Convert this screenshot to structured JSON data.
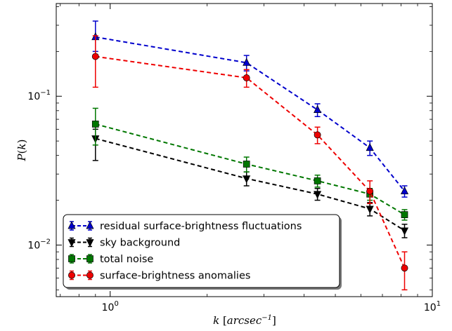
{
  "chart_data": {
    "type": "line",
    "xscale": "log",
    "yscale": "log",
    "xlim": [
      0.68,
      10
    ],
    "ylim": [
      0.0045,
      0.42
    ],
    "xlabel": "k [arcsec⁻¹]",
    "ylabel": "P(k)",
    "x_ticks": [
      {
        "value": 1,
        "base": "10",
        "exp": "0"
      },
      {
        "value": 10,
        "base": "10",
        "exp": "1"
      }
    ],
    "y_ticks": [
      {
        "value": 0.1,
        "base": "10",
        "exp": "−1"
      },
      {
        "value": 0.01,
        "base": "10",
        "exp": "−2"
      }
    ],
    "legend_position": "lower-left",
    "series": [
      {
        "name": "residual surface-brightness fluctuations",
        "color": "#0000cc",
        "marker": "triangle-up",
        "x": [
          0.9,
          2.65,
          4.4,
          6.4,
          8.2
        ],
        "y": [
          0.25,
          0.168,
          0.081,
          0.045,
          0.023
        ],
        "err_low": [
          0.05,
          0.02,
          0.008,
          0.005,
          0.002
        ],
        "err_high": [
          0.07,
          0.02,
          0.008,
          0.005,
          0.002
        ]
      },
      {
        "name": "sky background",
        "color": "#000000",
        "marker": "triangle-down",
        "x": [
          0.9,
          2.65,
          4.4,
          6.4,
          8.2
        ],
        "y": [
          0.052,
          0.028,
          0.022,
          0.0175,
          0.0125
        ],
        "err_low": [
          0.015,
          0.003,
          0.002,
          0.0018,
          0.0013
        ],
        "err_high": [
          0.008,
          0.003,
          0.002,
          0.0018,
          0.0013
        ]
      },
      {
        "name": "total noise",
        "color": "#007700",
        "marker": "square",
        "x": [
          0.9,
          2.65,
          4.4,
          6.4,
          8.2
        ],
        "y": [
          0.065,
          0.035,
          0.027,
          0.022,
          0.016
        ],
        "err_low": [
          0.018,
          0.004,
          0.0025,
          0.002,
          0.0013
        ],
        "err_high": [
          0.018,
          0.004,
          0.0025,
          0.002,
          0.0013
        ]
      },
      {
        "name": "surface-brightness anomalies",
        "color": "#ee0000",
        "marker": "circle",
        "x": [
          0.9,
          2.65,
          4.4,
          6.4,
          8.2
        ],
        "y": [
          0.185,
          0.133,
          0.055,
          0.023,
          0.007
        ],
        "err_low": [
          0.07,
          0.018,
          0.007,
          0.004,
          0.002
        ],
        "err_high": [
          0.07,
          0.018,
          0.007,
          0.004,
          0.002
        ]
      }
    ]
  }
}
